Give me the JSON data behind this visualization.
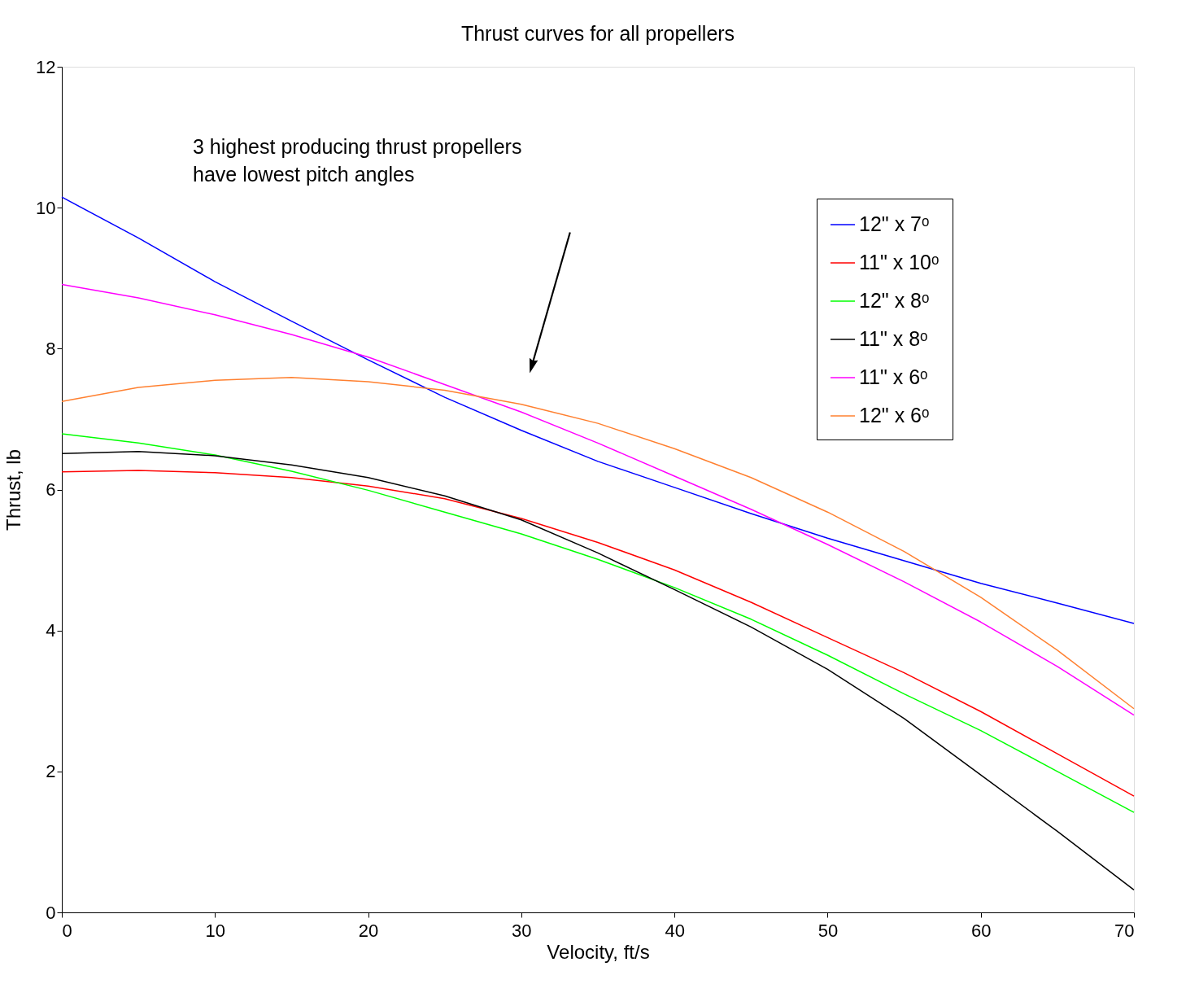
{
  "chart_data": {
    "type": "line",
    "title": "Thrust curves for all propellers",
    "xlabel": "Velocity, ft/s",
    "ylabel": "Thrust, lb",
    "xlim": [
      0,
      70
    ],
    "ylim": [
      0,
      12
    ],
    "xticks": [
      0,
      10,
      20,
      30,
      40,
      50,
      60,
      70
    ],
    "yticks": [
      0,
      2,
      4,
      6,
      8,
      10,
      12
    ],
    "grid": false,
    "legend": "top right",
    "marker": "none",
    "line_style": "solid",
    "x": [
      0,
      5,
      10,
      15,
      20,
      25,
      30,
      35,
      40,
      45,
      50,
      55,
      60,
      65,
      70
    ],
    "series": [
      {
        "name": "12\" x 7ᵒ",
        "color": "#0000ff",
        "values": [
          10.15,
          9.57,
          8.95,
          8.39,
          7.84,
          7.31,
          6.84,
          6.4,
          6.03,
          5.66,
          5.31,
          4.99,
          4.67,
          4.39,
          4.1
        ]
      },
      {
        "name": "11\" x 10ᵒ",
        "color": "#ff0000",
        "values": [
          6.25,
          6.27,
          6.24,
          6.17,
          6.05,
          5.87,
          5.59,
          5.25,
          4.86,
          4.4,
          3.9,
          3.4,
          2.85,
          2.25,
          1.65
        ]
      },
      {
        "name": "12\" x 8ᵒ",
        "color": "#00ff00",
        "values": [
          6.79,
          6.66,
          6.49,
          6.26,
          5.99,
          5.68,
          5.37,
          5.01,
          4.61,
          4.16,
          3.65,
          3.1,
          2.58,
          2.0,
          1.42
        ]
      },
      {
        "name": "11\" x 8ᵒ",
        "color": "#000000",
        "values": [
          6.51,
          6.54,
          6.48,
          6.35,
          6.17,
          5.91,
          5.57,
          5.1,
          4.58,
          4.05,
          3.45,
          2.75,
          1.95,
          1.15,
          0.32
        ]
      },
      {
        "name": "11\" x 6ᵒ",
        "color": "#ff00ff",
        "values": [
          8.91,
          8.72,
          8.48,
          8.2,
          7.88,
          7.49,
          7.1,
          6.66,
          6.19,
          5.72,
          5.22,
          4.69,
          4.12,
          3.49,
          2.8
        ]
      },
      {
        "name": "12\" x 6ᵒ",
        "color": "#ff8030",
        "values": [
          7.25,
          7.45,
          7.55,
          7.59,
          7.53,
          7.41,
          7.21,
          6.94,
          6.58,
          6.17,
          5.68,
          5.12,
          4.47,
          3.72,
          2.89
        ]
      }
    ],
    "annotations": [
      "3 highest producing thrust propellers\nhave lowest pitch angles"
    ]
  }
}
